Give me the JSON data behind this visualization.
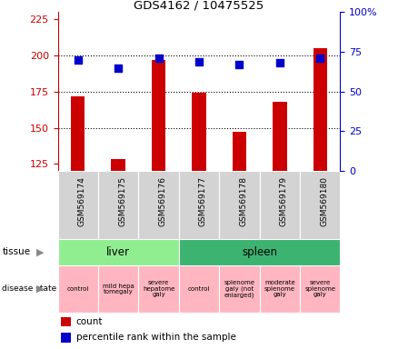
{
  "title": "GDS4162 / 10475525",
  "samples": [
    "GSM569174",
    "GSM569175",
    "GSM569176",
    "GSM569177",
    "GSM569178",
    "GSM569179",
    "GSM569180"
  ],
  "counts": [
    172,
    128,
    197,
    174,
    147,
    168,
    205
  ],
  "percentile_ranks": [
    70,
    65,
    71,
    69,
    67,
    68,
    71
  ],
  "ylim_left": [
    120,
    230
  ],
  "ylim_right": [
    0,
    100
  ],
  "yticks_left": [
    125,
    150,
    175,
    200,
    225
  ],
  "yticks_right": [
    0,
    25,
    50,
    75,
    100
  ],
  "bar_color": "#cc0000",
  "dot_color": "#0000cc",
  "tissue_groups": [
    {
      "label": "liver",
      "start": 0,
      "end": 3,
      "color": "#90ee90"
    },
    {
      "label": "spleen",
      "start": 3,
      "end": 7,
      "color": "#3cb371"
    }
  ],
  "disease_states": [
    {
      "label": "control",
      "start": 0,
      "end": 1,
      "color": "#ffb6c1"
    },
    {
      "label": "mild hepa\ntomegaly",
      "start": 1,
      "end": 2,
      "color": "#ffb6c1"
    },
    {
      "label": "severe\nhepatome\ngaly",
      "start": 2,
      "end": 3,
      "color": "#ffb6c1"
    },
    {
      "label": "control",
      "start": 3,
      "end": 4,
      "color": "#ffb6c1"
    },
    {
      "label": "splenome\ngaly (not\nenlarged)",
      "start": 4,
      "end": 5,
      "color": "#ffb6c1"
    },
    {
      "label": "moderate\nsplenome\ngaly",
      "start": 5,
      "end": 6,
      "color": "#ffb6c1"
    },
    {
      "label": "severe\nsplenome\ngaly",
      "start": 6,
      "end": 7,
      "color": "#ffb6c1"
    }
  ],
  "left_axis_color": "#cc0000",
  "right_axis_color": "#0000cc",
  "bar_width": 0.35,
  "dot_size": 40,
  "sample_box_color": "#d3d3d3",
  "legend_items": [
    "count",
    "percentile rank within the sample"
  ],
  "background_color": "#ffffff"
}
